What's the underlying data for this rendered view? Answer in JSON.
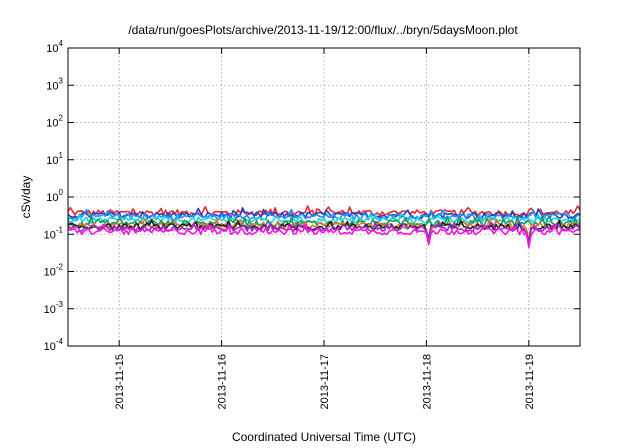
{
  "chart_data": {
    "type": "line",
    "title": "/data/run/goesPlots/archive/2013-11-19/12:00/flux/../bryn/5daysMoon.plot",
    "xlabel": "Coordinated Universal Time (UTC)",
    "ylabel": "cSv/day",
    "yscale": "log",
    "ylim": [
      0.0001,
      10000
    ],
    "xlim": [
      "2013-11-14 12:00",
      "2013-11-19 12:00"
    ],
    "y_ticks": [
      {
        "base": "10",
        "exp": "4"
      },
      {
        "base": "10",
        "exp": "3"
      },
      {
        "base": "10",
        "exp": "2"
      },
      {
        "base": "10",
        "exp": "1"
      },
      {
        "base": "10",
        "exp": "0"
      },
      {
        "base": "10",
        "exp": "-1"
      },
      {
        "base": "10",
        "exp": "-2"
      },
      {
        "base": "10",
        "exp": "-3"
      },
      {
        "base": "10",
        "exp": "-4"
      }
    ],
    "x_ticks": [
      "2013-11-15",
      "2013-11-16",
      "2013-11-17",
      "2013-11-18",
      "2013-11-19"
    ],
    "grid": true,
    "legend": "none",
    "series": [
      {
        "color": "#e8262f",
        "level": 0.38
      },
      {
        "color": "#2a3dbf",
        "level": 0.33
      },
      {
        "color": "#1e90ff",
        "level": 0.3
      },
      {
        "color": "#19d6d6",
        "level": 0.24
      },
      {
        "color": "#1a9a5a",
        "level": 0.2
      },
      {
        "color": "#d87a30",
        "level": 0.17
      },
      {
        "color": "#222222",
        "level": 0.16
      },
      {
        "color": "#9a2fd0",
        "level": 0.145
      },
      {
        "color": "#ff10e0",
        "level": 0.12
      }
    ],
    "dips": [
      {
        "x": "2013-11-16 22:00",
        "min": 0.1
      },
      {
        "x": "2013-11-18 00:30",
        "min": 0.05
      },
      {
        "x": "2013-11-19 00:00",
        "min": 0.045
      }
    ]
  }
}
